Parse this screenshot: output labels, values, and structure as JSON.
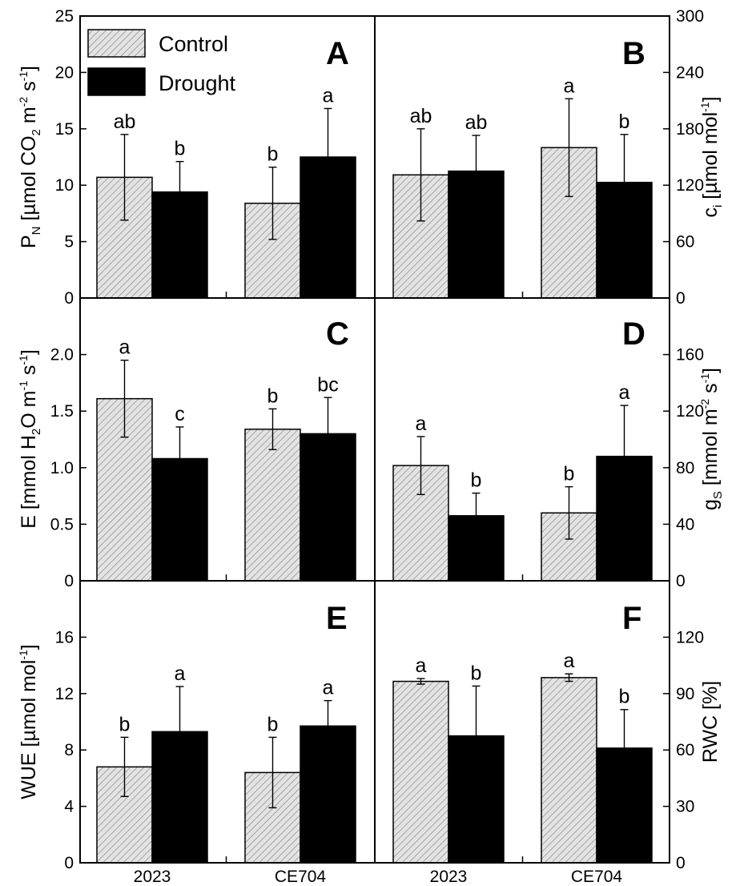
{
  "legend": {
    "items": [
      {
        "label": "Control",
        "pattern": "hatched-light-gray"
      },
      {
        "label": "Drought",
        "pattern": "solid-black"
      }
    ]
  },
  "colors": {
    "control_fill": "#e3e3e3",
    "control_hatch": "#8a8a8a",
    "drought_fill": "#000000",
    "axis": "#000000"
  },
  "chart_data": [
    {
      "panel": "A",
      "type": "bar",
      "yaxis_side": "left",
      "ylabel": {
        "main": "P",
        "sub": "N",
        "rest": " [µmol CO",
        "sub2": "2",
        "rest2": " m",
        "sup1": "-2",
        "rest3": " s",
        "sup2": "-1",
        "end": "]"
      },
      "ylim": [
        0,
        25
      ],
      "yticks": [
        0,
        5,
        10,
        15,
        20,
        25
      ],
      "categories": [
        "2023",
        "CE704"
      ],
      "series": [
        {
          "name": "Control",
          "values": [
            10.7,
            8.4
          ],
          "errors": [
            3.8,
            3.2
          ],
          "labels": [
            "ab",
            "b"
          ]
        },
        {
          "name": "Drought",
          "values": [
            9.4,
            12.5
          ],
          "errors": [
            2.7,
            4.3
          ],
          "labels": [
            "b",
            "a"
          ]
        }
      ]
    },
    {
      "panel": "B",
      "type": "bar",
      "yaxis_side": "right",
      "ylabel": {
        "main": "c",
        "sub": "i",
        "rest": " [µmol mol",
        "sup1": "-1",
        "end": "]"
      },
      "ylim": [
        0,
        300
      ],
      "yticks": [
        0,
        60,
        120,
        180,
        240,
        300
      ],
      "categories": [
        "2023",
        "CE704"
      ],
      "series": [
        {
          "name": "Control",
          "values": [
            131,
            160
          ],
          "errors": [
            49,
            52
          ],
          "labels": [
            "ab",
            "a"
          ]
        },
        {
          "name": "Drought",
          "values": [
            135,
            123
          ],
          "errors": [
            38,
            51
          ],
          "labels": [
            "ab",
            "b"
          ]
        }
      ]
    },
    {
      "panel": "C",
      "type": "bar",
      "yaxis_side": "left",
      "ylabel": {
        "main": "E [mmol H",
        "sub": "2",
        "rest": "O m",
        "sup1": "-1",
        "rest2": " s",
        "sup2": "-1",
        "end": "]"
      },
      "ylim": [
        0,
        2.5
      ],
      "yticks": [
        "0",
        "0.5",
        "1.0",
        "1.5",
        "2.0"
      ],
      "categories": [
        "2023",
        "CE704"
      ],
      "series": [
        {
          "name": "Control",
          "values": [
            1.61,
            1.34
          ],
          "errors": [
            0.34,
            0.18
          ],
          "labels": [
            "a",
            "b"
          ]
        },
        {
          "name": "Drought",
          "values": [
            1.08,
            1.3
          ],
          "errors": [
            0.28,
            0.32
          ],
          "labels": [
            "c",
            "bc"
          ]
        }
      ]
    },
    {
      "panel": "D",
      "type": "bar",
      "yaxis_side": "right",
      "ylabel": {
        "main": "g",
        "sub": "S",
        "rest": " [mmol m",
        "sup1": "-2",
        "rest2": " s",
        "sup2": "-1",
        "end": "]"
      },
      "ylim": [
        0,
        200
      ],
      "yticks": [
        0,
        40,
        80,
        120,
        160
      ],
      "categories": [
        "2023",
        "CE704"
      ],
      "series": [
        {
          "name": "Control",
          "values": [
            81.5,
            48
          ],
          "errors": [
            20.5,
            18.5
          ],
          "labels": [
            "a",
            "b"
          ]
        },
        {
          "name": "Drought",
          "values": [
            46,
            88
          ],
          "errors": [
            16,
            36
          ],
          "labels": [
            "b",
            "a"
          ]
        }
      ]
    },
    {
      "panel": "E",
      "type": "bar",
      "yaxis_side": "left",
      "ylabel": {
        "main": "WUE [µmol mol",
        "sup1": "-1",
        "end": "]"
      },
      "ylim": [
        0,
        20
      ],
      "yticks": [
        0,
        4,
        8,
        12,
        16
      ],
      "categories": [
        "2023",
        "CE704"
      ],
      "series": [
        {
          "name": "Control",
          "values": [
            6.8,
            6.4
          ],
          "errors": [
            2.1,
            2.5
          ],
          "labels": [
            "b",
            "b"
          ]
        },
        {
          "name": "Drought",
          "values": [
            9.3,
            9.7
          ],
          "errors": [
            3.2,
            1.8
          ],
          "labels": [
            "a",
            "a"
          ]
        }
      ]
    },
    {
      "panel": "F",
      "type": "bar",
      "yaxis_side": "right",
      "ylabel": {
        "main": "RWC [%]"
      },
      "ylim": [
        0,
        150
      ],
      "yticks": [
        0,
        30,
        60,
        90,
        120
      ],
      "categories": [
        "2023",
        "CE704"
      ],
      "series": [
        {
          "name": "Control",
          "values": [
            96.5,
            98.5
          ],
          "errors": [
            1.5,
            2.0
          ],
          "labels": [
            "a",
            "a"
          ]
        },
        {
          "name": "Drought",
          "values": [
            67.5,
            61
          ],
          "errors": [
            26.5,
            20.5
          ],
          "labels": [
            "b",
            "b"
          ]
        }
      ]
    }
  ]
}
